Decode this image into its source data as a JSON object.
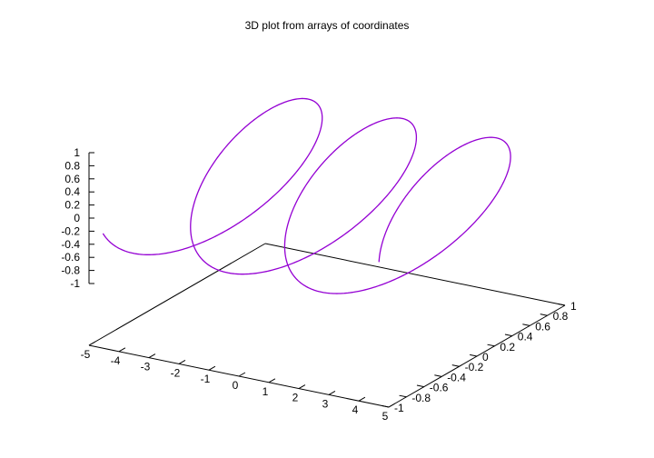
{
  "chart_data": {
    "type": "line3d",
    "title": "3D plot from arrays of coordinates",
    "xlabel": "",
    "ylabel": "",
    "zlabel": "",
    "xlim": [
      -5,
      5
    ],
    "ylim": [
      -1,
      1
    ],
    "zlim": [
      -1,
      1
    ],
    "x_ticks": [
      "-5",
      "-4",
      "-3",
      "-2",
      "-1",
      "0",
      "1",
      "2",
      "3",
      "4",
      "5"
    ],
    "y_ticks": [
      "-1",
      "-0.8",
      "-0.6",
      "-0.4",
      "-0.2",
      "0",
      "0.2",
      "0.4",
      "0.6",
      "0.8",
      "1"
    ],
    "z_ticks": [
      "-1",
      "-0.8",
      "-0.6",
      "-0.4",
      "-0.2",
      "0",
      "0.2",
      "0.4",
      "0.6",
      "0.8",
      "1"
    ],
    "grid": false,
    "legend": "none",
    "series": [
      {
        "color": "#9400d3",
        "curve": "helix: x = t, y = cos(2t), z = sin(2t)",
        "t_range": [
          -4.6,
          4.6
        ]
      }
    ]
  }
}
